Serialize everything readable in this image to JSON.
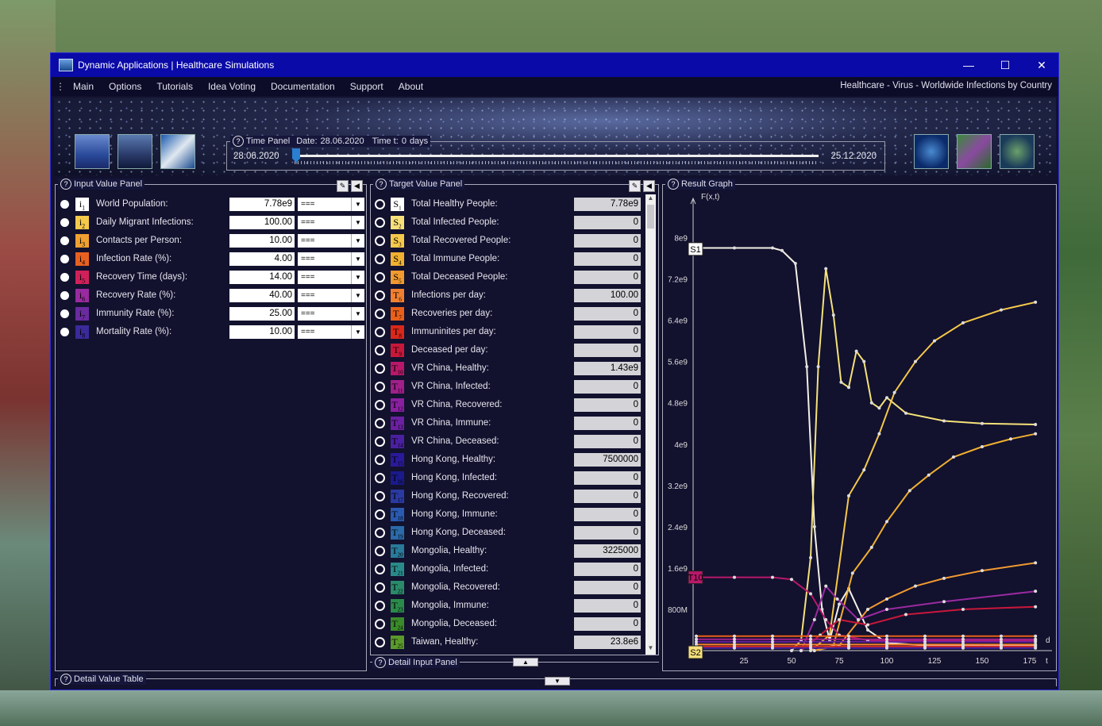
{
  "window": {
    "title": "Dynamic Applications | Healthcare Simulations",
    "min": "—",
    "max": "☐",
    "close": "✕"
  },
  "menu": {
    "items": [
      "Main",
      "Options",
      "Tutorials",
      "Idea Voting",
      "Documentation",
      "Support",
      "About"
    ],
    "right": "Healthcare - Virus - Worldwide Infections by Country"
  },
  "time_panel": {
    "legend": "Time Panel",
    "date_label": "Date:",
    "date": "28.06.2020",
    "time_label": "Time t:",
    "time": "0",
    "time_unit": "days",
    "start": "28.06.2020",
    "end": "25.12.2020",
    "position": 0
  },
  "input_panel": {
    "title": "Input Value Panel",
    "rows": [
      {
        "sym": "i",
        "sub": "1",
        "label": "World Population:",
        "value": "7.78e9",
        "op": "===",
        "color": "#ffffff"
      },
      {
        "sym": "i",
        "sub": "2",
        "label": "Daily Migrant Infections:",
        "value": "100.00",
        "op": "===",
        "color": "#f5c94a"
      },
      {
        "sym": "i",
        "sub": "3",
        "label": "Contacts per Person:",
        "value": "10.00",
        "op": "===",
        "color": "#f0a030"
      },
      {
        "sym": "i",
        "sub": "4",
        "label": "Infection Rate (%):",
        "value": "4.00",
        "op": "===",
        "color": "#e86020"
      },
      {
        "sym": "i",
        "sub": "5",
        "label": "Recovery Time (days):",
        "value": "14.00",
        "op": "===",
        "color": "#d0205a"
      },
      {
        "sym": "i",
        "sub": "6",
        "label": "Recovery Rate (%):",
        "value": "40.00",
        "op": "===",
        "color": "#9a2aa0"
      },
      {
        "sym": "i",
        "sub": "7",
        "label": "Immunity Rate (%):",
        "value": "25.00",
        "op": "===",
        "color": "#6a2aa0"
      },
      {
        "sym": "i",
        "sub": "8",
        "label": "Mortality Rate (%):",
        "value": "10.00",
        "op": "===",
        "color": "#3a2a9a"
      }
    ]
  },
  "target_panel": {
    "title": "Target Value Panel",
    "rows": [
      {
        "sym": "S",
        "sub": "1",
        "label": "Total Healthy People:",
        "value": "7.78e9",
        "color": "#ffffff"
      },
      {
        "sym": "S",
        "sub": "2",
        "label": "Total Infected People:",
        "value": "0",
        "color": "#f7e07a"
      },
      {
        "sym": "S",
        "sub": "3",
        "label": "Total Recovered People:",
        "value": "0",
        "color": "#f5c94a"
      },
      {
        "sym": "S",
        "sub": "4",
        "label": "Total Immune People:",
        "value": "0",
        "color": "#f0b030"
      },
      {
        "sym": "S",
        "sub": "5",
        "label": "Total Deceased People:",
        "value": "0",
        "color": "#f09a30"
      },
      {
        "sym": "T",
        "sub": "6",
        "label": "Infections per day:",
        "value": "100.00",
        "color": "#f08030"
      },
      {
        "sym": "T",
        "sub": "7",
        "label": "Recoveries per day:",
        "value": "0",
        "color": "#e8601a"
      },
      {
        "sym": "T",
        "sub": "8",
        "label": "Immuninites per day:",
        "value": "0",
        "color": "#d8281a"
      },
      {
        "sym": "T",
        "sub": "9",
        "label": "Deceased per day:",
        "value": "0",
        "color": "#c8183a"
      },
      {
        "sym": "T",
        "sub": "10",
        "label": "VR China, Healthy:",
        "value": "1.43e9",
        "color": "#b8186a"
      },
      {
        "sym": "T",
        "sub": "11",
        "label": "VR China, Infected:",
        "value": "0",
        "color": "#a0208a"
      },
      {
        "sym": "T",
        "sub": "12",
        "label": "VR China, Recovered:",
        "value": "0",
        "color": "#8a20a0"
      },
      {
        "sym": "T",
        "sub": "13",
        "label": "VR China, Immune:",
        "value": "0",
        "color": "#6a20a0"
      },
      {
        "sym": "T",
        "sub": "14",
        "label": "VR China, Deceased:",
        "value": "0",
        "color": "#4a20a0"
      },
      {
        "sym": "T",
        "sub": "15",
        "label": "Hong Kong, Healthy:",
        "value": "7500000",
        "color": "#2a1a9a"
      },
      {
        "sym": "T",
        "sub": "16",
        "label": "Hong Kong, Infected:",
        "value": "0",
        "color": "#1a1a8a"
      },
      {
        "sym": "T",
        "sub": "17",
        "label": "Hong Kong, Recovered:",
        "value": "0",
        "color": "#2a3aa0"
      },
      {
        "sym": "T",
        "sub": "18",
        "label": "Hong Kong, Immune:",
        "value": "0",
        "color": "#2a5ab0"
      },
      {
        "sym": "T",
        "sub": "19",
        "label": "Hong Kong, Deceased:",
        "value": "0",
        "color": "#2a6aa8"
      },
      {
        "sym": "T",
        "sub": "20",
        "label": "Mongolia, Healthy:",
        "value": "3225000",
        "color": "#2a7a9a"
      },
      {
        "sym": "T",
        "sub": "21",
        "label": "Mongolia, Infected:",
        "value": "0",
        "color": "#2a8a8a"
      },
      {
        "sym": "T",
        "sub": "22",
        "label": "Mongolia, Recovered:",
        "value": "0",
        "color": "#2a8a6a"
      },
      {
        "sym": "T",
        "sub": "23",
        "label": "Mongolia, Immune:",
        "value": "0",
        "color": "#2a8a4a"
      },
      {
        "sym": "T",
        "sub": "24",
        "label": "Mongolia, Deceased:",
        "value": "0",
        "color": "#3a8a2a"
      },
      {
        "sym": "T",
        "sub": "25",
        "label": "Taiwan, Healthy:",
        "value": "23.8e6",
        "color": "#5a9a2a"
      }
    ]
  },
  "result_graph": {
    "title": "Result Graph",
    "fx_label": "F(x,t)",
    "x_unit": "d",
    "x_axis_label": "t",
    "y_ticks": [
      "8e9",
      "7.2e9",
      "6.4e9",
      "5.6e9",
      "4.8e9",
      "4e9",
      "3.2e9",
      "2.4e9",
      "1.6e9",
      "800M"
    ],
    "x_ticks": [
      "25",
      "50",
      "75",
      "100",
      "125",
      "150",
      "175"
    ],
    "markers": {
      "top": "S1",
      "mid": "T10",
      "bottom": "S2"
    }
  },
  "detail_input": {
    "title": "Detail Input Panel"
  },
  "detail_table": {
    "title": "Detail Value Table"
  },
  "colors": {
    "window_bg": "#12112e",
    "titlebar": "#0a0aa8",
    "slider_thumb": "#2a7fd0"
  }
}
